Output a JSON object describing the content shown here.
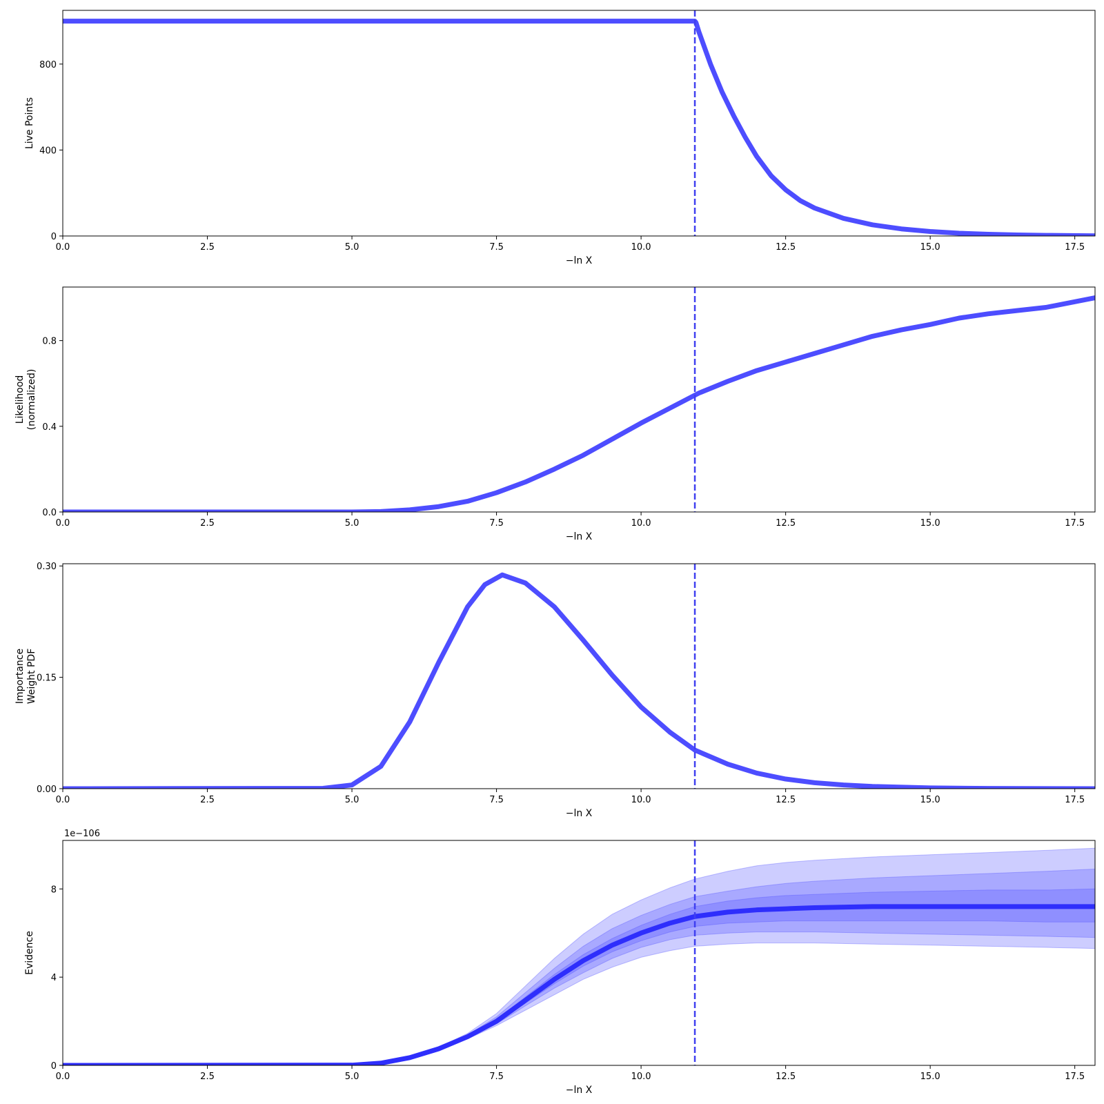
{
  "chart_data": [
    {
      "type": "line",
      "xlabel": "−ln X",
      "ylabel": [
        "Live Points"
      ],
      "xlim": [
        0,
        17.85
      ],
      "ylim": [
        0,
        1050
      ],
      "xticks": [
        0,
        2.5,
        5,
        7.5,
        10,
        12.5,
        15,
        17.5
      ],
      "xtick_labels": [
        "0.0",
        "2.5",
        "5.0",
        "7.5",
        "10.0",
        "12.5",
        "15.0",
        "17.5"
      ],
      "yticks": [
        0,
        400,
        800
      ],
      "ytick_labels": [
        "0",
        "400",
        "800"
      ],
      "vline_x": 10.93,
      "colors": {
        "line": "#4d4dff",
        "vline": "#3f3ff0"
      },
      "series": [
        {
          "x": [
            0,
            10.93,
            10.95,
            11.0,
            11.2,
            11.4,
            11.6,
            11.8,
            12.0,
            12.25,
            12.5,
            12.75,
            13.0,
            13.5,
            14.0,
            14.5,
            15.0,
            15.5,
            16.0,
            16.5,
            17.0,
            17.85
          ],
          "y": [
            1000,
            1000,
            993,
            950,
            800,
            670,
            560,
            460,
            370,
            280,
            215,
            165,
            130,
            82,
            52,
            33,
            21,
            13,
            8,
            5,
            3,
            1
          ]
        }
      ]
    },
    {
      "type": "line",
      "xlabel": "−ln X",
      "ylabel": [
        "Likelihood",
        "(normalized)"
      ],
      "xlim": [
        0,
        17.85
      ],
      "ylim": [
        0,
        1.05
      ],
      "xticks": [
        0,
        2.5,
        5,
        7.5,
        10,
        12.5,
        15,
        17.5
      ],
      "xtick_labels": [
        "0.0",
        "2.5",
        "5.0",
        "7.5",
        "10.0",
        "12.5",
        "15.0",
        "17.5"
      ],
      "yticks": [
        0,
        0.4,
        0.8
      ],
      "ytick_labels": [
        "0.0",
        "0.4",
        "0.8"
      ],
      "vline_x": 10.93,
      "colors": {
        "line": "#4d4dff",
        "vline": "#3f3ff0"
      },
      "series": [
        {
          "x": [
            0,
            5.0,
            5.5,
            6.0,
            6.5,
            7.0,
            7.5,
            8.0,
            8.5,
            9.0,
            9.5,
            10.0,
            10.5,
            11.0,
            11.5,
            12.0,
            12.5,
            13.0,
            13.5,
            14.0,
            14.5,
            15.0,
            15.5,
            16.0,
            16.5,
            17.0,
            17.85
          ],
          "y": [
            0,
            0.0,
            0.002,
            0.01,
            0.025,
            0.05,
            0.09,
            0.14,
            0.2,
            0.265,
            0.34,
            0.415,
            0.485,
            0.555,
            0.61,
            0.66,
            0.7,
            0.74,
            0.78,
            0.82,
            0.85,
            0.875,
            0.905,
            0.925,
            0.94,
            0.955,
            1.0
          ]
        }
      ]
    },
    {
      "type": "line",
      "xlabel": "−ln X",
      "ylabel": [
        "Importance",
        "Weight PDF"
      ],
      "xlim": [
        0,
        17.85
      ],
      "ylim": [
        0,
        0.303
      ],
      "xticks": [
        0,
        2.5,
        5,
        7.5,
        10,
        12.5,
        15,
        17.5
      ],
      "xtick_labels": [
        "0.0",
        "2.5",
        "5.0",
        "7.5",
        "10.0",
        "12.5",
        "15.0",
        "17.5"
      ],
      "yticks": [
        0,
        0.15,
        0.3
      ],
      "ytick_labels": [
        "0.00",
        "0.15",
        "0.30"
      ],
      "vline_x": 10.93,
      "colors": {
        "line": "#4d4dff",
        "vline": "#3f3ff0"
      },
      "series": [
        {
          "x": [
            0,
            4.5,
            5.0,
            5.5,
            6.0,
            6.5,
            7.0,
            7.3,
            7.6,
            8.0,
            8.5,
            9.0,
            9.5,
            10.0,
            10.5,
            10.93,
            11.5,
            12.0,
            12.5,
            13.0,
            13.5,
            14.0,
            15.0,
            16.0,
            17.85
          ],
          "y": [
            0,
            0.0005,
            0.005,
            0.03,
            0.09,
            0.17,
            0.245,
            0.275,
            0.288,
            0.277,
            0.245,
            0.2,
            0.153,
            0.11,
            0.076,
            0.052,
            0.033,
            0.021,
            0.013,
            0.008,
            0.005,
            0.003,
            0.001,
            0.0003,
            0
          ]
        }
      ]
    },
    {
      "type": "area",
      "xlabel": "−ln X",
      "ylabel": [
        "Evidence"
      ],
      "offset_text": "1e−106",
      "xlim": [
        0,
        17.85
      ],
      "ylim": [
        0,
        10.2
      ],
      "xticks": [
        0,
        2.5,
        5,
        7.5,
        10,
        12.5,
        15,
        17.5
      ],
      "xtick_labels": [
        "0.0",
        "2.5",
        "5.0",
        "7.5",
        "10.0",
        "12.5",
        "15.0",
        "17.5"
      ],
      "yticks": [
        0,
        4,
        8
      ],
      "ytick_labels": [
        "0",
        "4",
        "8"
      ],
      "vline_x": 10.93,
      "colors": {
        "line": "#2e2efc",
        "band": "#4d4dff",
        "vline": "#3f3ff0"
      },
      "x": [
        0,
        5.0,
        5.5,
        6.0,
        6.5,
        7.0,
        7.5,
        8.0,
        8.5,
        9.0,
        9.5,
        10.0,
        10.5,
        10.93,
        11.5,
        12.0,
        12.5,
        13.0,
        14.0,
        15.0,
        16.0,
        17.0,
        17.85
      ],
      "median": [
        0,
        0.01,
        0.1,
        0.35,
        0.75,
        1.3,
        2.0,
        2.95,
        3.9,
        4.75,
        5.45,
        6.0,
        6.45,
        6.75,
        6.95,
        7.05,
        7.1,
        7.15,
        7.2,
        7.2,
        7.2,
        7.2,
        7.2
      ],
      "bands": [
        {
          "lower": [
            0,
            0.01,
            0.09,
            0.32,
            0.7,
            1.2,
            1.8,
            2.5,
            3.2,
            3.9,
            4.45,
            4.9,
            5.2,
            5.4,
            5.5,
            5.55,
            5.55,
            5.55,
            5.5,
            5.45,
            5.4,
            5.35,
            5.3
          ],
          "upper": [
            0,
            0.01,
            0.11,
            0.38,
            0.82,
            1.45,
            2.35,
            3.6,
            4.85,
            5.95,
            6.85,
            7.5,
            8.05,
            8.45,
            8.8,
            9.05,
            9.2,
            9.3,
            9.45,
            9.55,
            9.65,
            9.75,
            9.85
          ]
        },
        {
          "lower": [
            0,
            0.01,
            0.095,
            0.33,
            0.72,
            1.24,
            1.88,
            2.7,
            3.5,
            4.2,
            4.85,
            5.35,
            5.7,
            5.9,
            6.0,
            6.05,
            6.05,
            6.05,
            6.0,
            5.95,
            5.9,
            5.85,
            5.8
          ],
          "upper": [
            0,
            0.01,
            0.105,
            0.37,
            0.79,
            1.38,
            2.2,
            3.3,
            4.4,
            5.4,
            6.2,
            6.8,
            7.3,
            7.65,
            7.9,
            8.1,
            8.25,
            8.35,
            8.5,
            8.6,
            8.7,
            8.8,
            8.9
          ]
        },
        {
          "lower": [
            0,
            0.01,
            0.098,
            0.34,
            0.74,
            1.27,
            1.94,
            2.82,
            3.7,
            4.5,
            5.15,
            5.65,
            6.05,
            6.3,
            6.45,
            6.5,
            6.55,
            6.55,
            6.55,
            6.55,
            6.55,
            6.5,
            6.5
          ],
          "upper": [
            0,
            0.01,
            0.102,
            0.36,
            0.77,
            1.33,
            2.08,
            3.1,
            4.12,
            5.02,
            5.75,
            6.35,
            6.85,
            7.2,
            7.45,
            7.6,
            7.7,
            7.75,
            7.85,
            7.9,
            7.95,
            7.95,
            8.0
          ]
        }
      ]
    }
  ]
}
